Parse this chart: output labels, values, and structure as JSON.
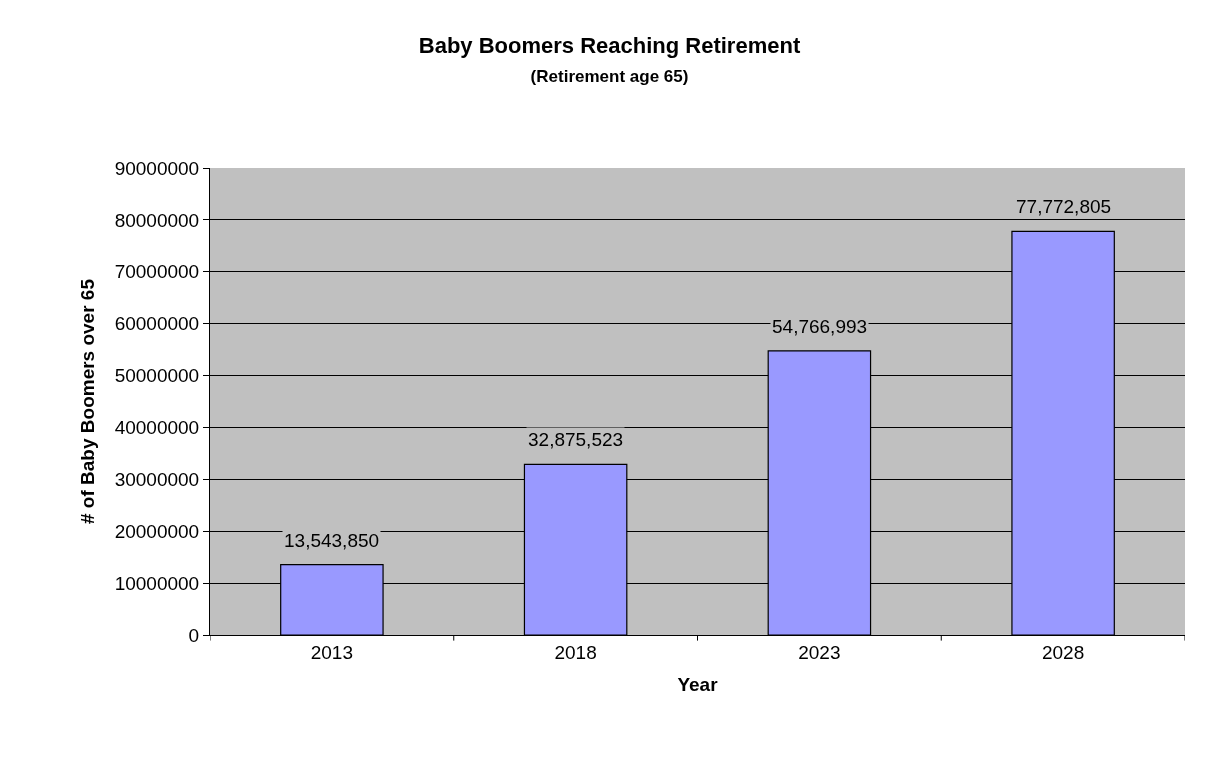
{
  "chart_data": {
    "type": "bar",
    "title": "Baby Boomers Reaching Retirement",
    "subtitle": "(Retirement age 65)",
    "xlabel": "Year",
    "ylabel": "# of Baby Boomers over 65",
    "categories": [
      "2013",
      "2018",
      "2023",
      "2028"
    ],
    "series": [
      {
        "color": "#9999ff",
        "values": [
          13543850,
          32875523,
          54766993,
          77772805
        ],
        "value_labels": [
          "13,543,850",
          "32,875,523",
          "54,766,993",
          "77,772,805"
        ]
      }
    ],
    "ylim": [
      0,
      90000000
    ],
    "yticks": [
      0,
      10000000,
      20000000,
      30000000,
      40000000,
      50000000,
      60000000,
      70000000,
      80000000,
      90000000
    ],
    "grid": "y"
  }
}
